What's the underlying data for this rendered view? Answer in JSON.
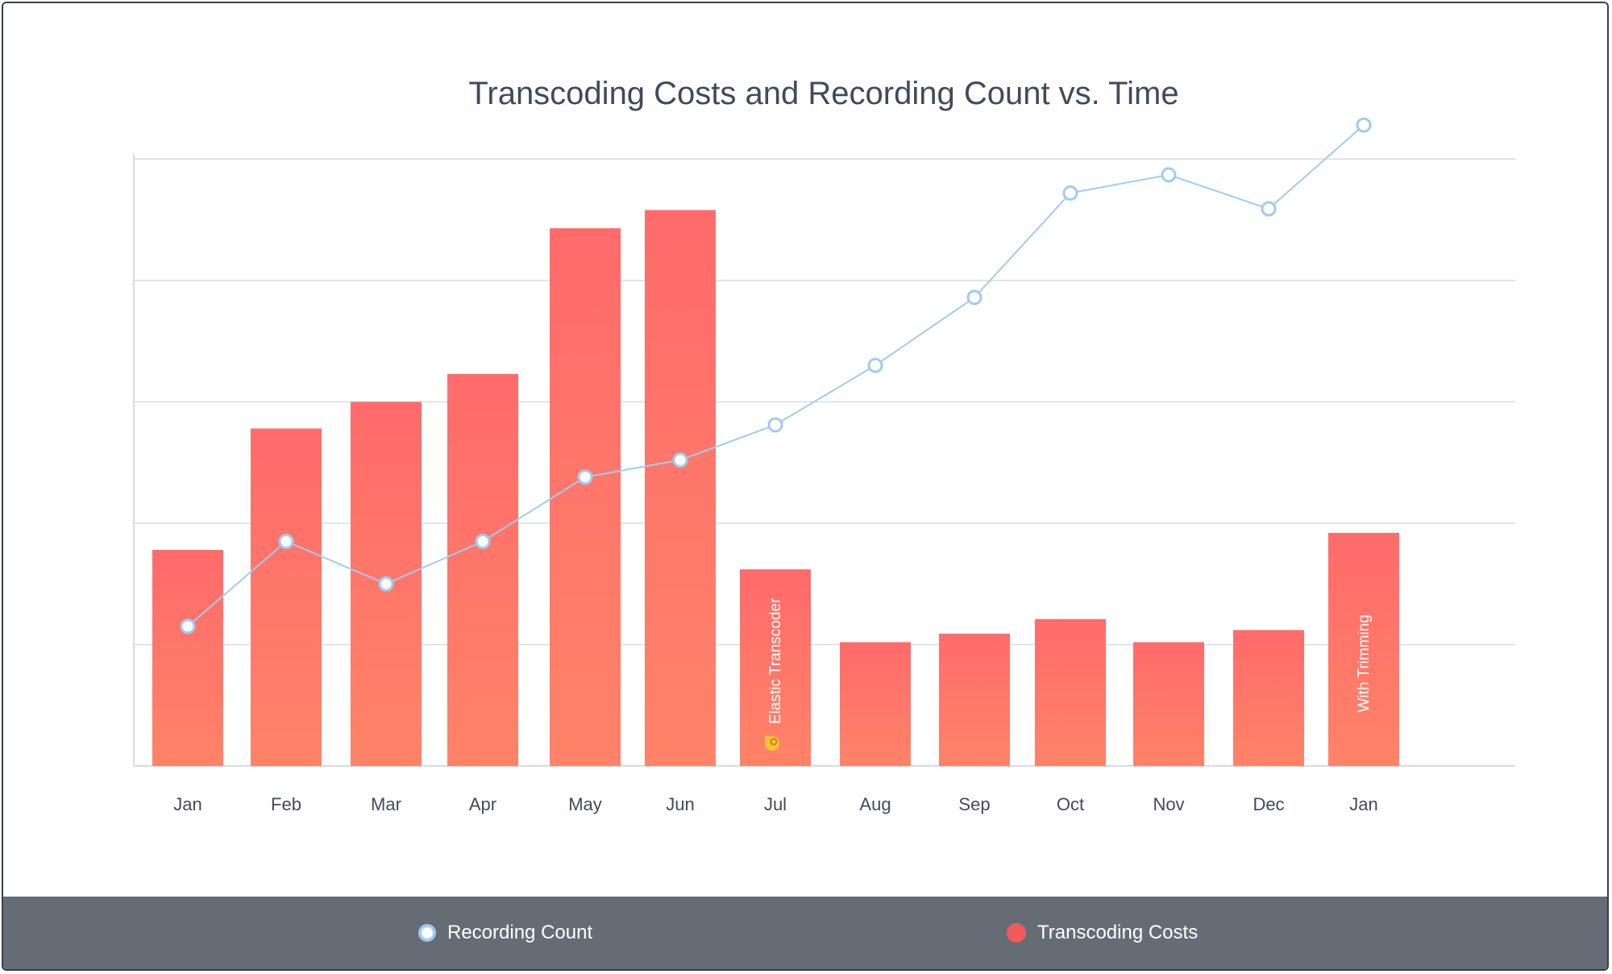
{
  "chart_data": {
    "type": "bar",
    "title": "Transcoding Costs and Recording Count vs. Time",
    "categories": [
      "Jan",
      "Feb",
      "Mar",
      "Apr",
      "May",
      "Jun",
      "Jul",
      "Aug",
      "Sep",
      "Oct",
      "Nov",
      "Dec",
      "Jan"
    ],
    "series": [
      {
        "name": "Transcoding Costs",
        "type": "bar",
        "values": [
          1.78,
          2.78,
          3.0,
          3.23,
          4.43,
          4.58,
          1.62,
          1.02,
          1.09,
          1.21,
          1.02,
          1.12,
          1.92
        ]
      },
      {
        "name": "Recording Count",
        "type": "line",
        "values": [
          1.15,
          1.85,
          1.5,
          1.85,
          2.38,
          2.52,
          2.81,
          3.3,
          3.86,
          4.72,
          4.87,
          4.59,
          5.28
        ]
      }
    ],
    "annotations": [
      {
        "category_index": 6,
        "text": "Elastic Transcoder",
        "icon": "ok-hand-emoji"
      },
      {
        "category_index": 12,
        "text": "With Trimming"
      }
    ],
    "xlabel": "",
    "ylabel": "",
    "ylim": [
      0,
      5.5
    ],
    "grid": true,
    "legend_position": "bottom",
    "colors": {
      "bar_top": "#ff6b6b",
      "bar_bottom": "#ff8368",
      "line": "#9fcbf3",
      "grid": "#d9dce1",
      "title": "#3f4b5c"
    }
  },
  "legend": {
    "recording_label": "Recording Count",
    "costs_label": "Transcoding Costs"
  }
}
